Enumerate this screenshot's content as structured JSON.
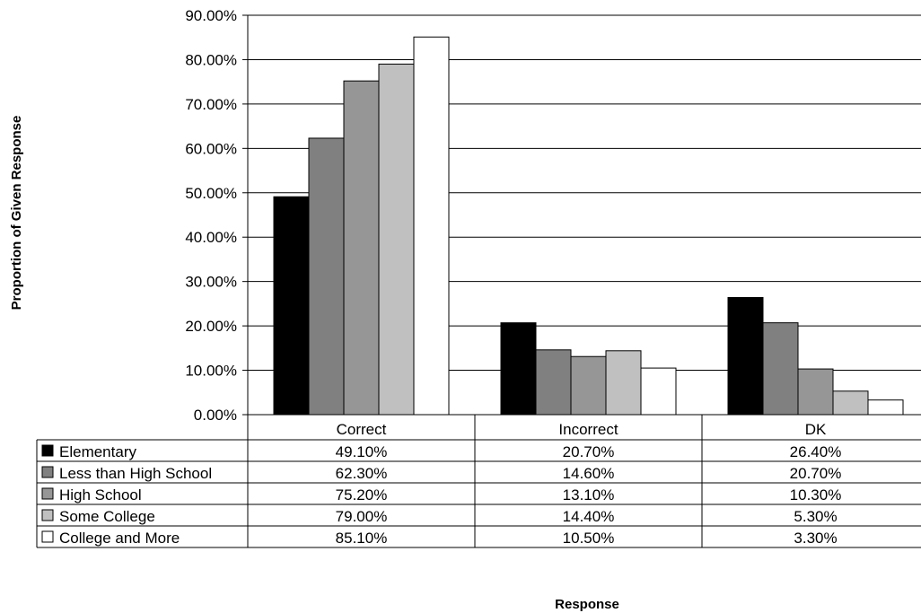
{
  "chart_data": {
    "type": "bar",
    "title": "",
    "xlabel": "Response",
    "ylabel": "Proportion of Given Response",
    "categories": [
      "Correct",
      "Incorrect",
      "DK"
    ],
    "ylim": [
      0,
      90
    ],
    "yticks": [
      "0.00%",
      "10.00%",
      "20.00%",
      "30.00%",
      "40.00%",
      "50.00%",
      "60.00%",
      "70.00%",
      "80.00%",
      "90.00%"
    ],
    "grid": true,
    "legend": "data table below plot",
    "series": [
      {
        "name": "Elementary",
        "color": "#000000",
        "values": [
          49.1,
          20.7,
          26.4
        ],
        "labels": [
          "49.10%",
          "20.70%",
          "26.40%"
        ]
      },
      {
        "name": "Less than High School",
        "color": "#808080",
        "values": [
          62.3,
          14.6,
          20.7
        ],
        "labels": [
          "62.30%",
          "14.60%",
          "20.70%"
        ]
      },
      {
        "name": "High School",
        "color": "#969696",
        "values": [
          75.2,
          13.1,
          10.3
        ],
        "labels": [
          "75.20%",
          "13.10%",
          "10.30%"
        ]
      },
      {
        "name": "Some College",
        "color": "#c0c0c0",
        "values": [
          79.0,
          14.4,
          5.3
        ],
        "labels": [
          "79.00%",
          "14.40%",
          "5.30%"
        ]
      },
      {
        "name": "College and More",
        "color": "#ffffff",
        "values": [
          85.1,
          10.5,
          3.3
        ],
        "labels": [
          "85.10%",
          "10.50%",
          "3.30%"
        ]
      }
    ]
  }
}
